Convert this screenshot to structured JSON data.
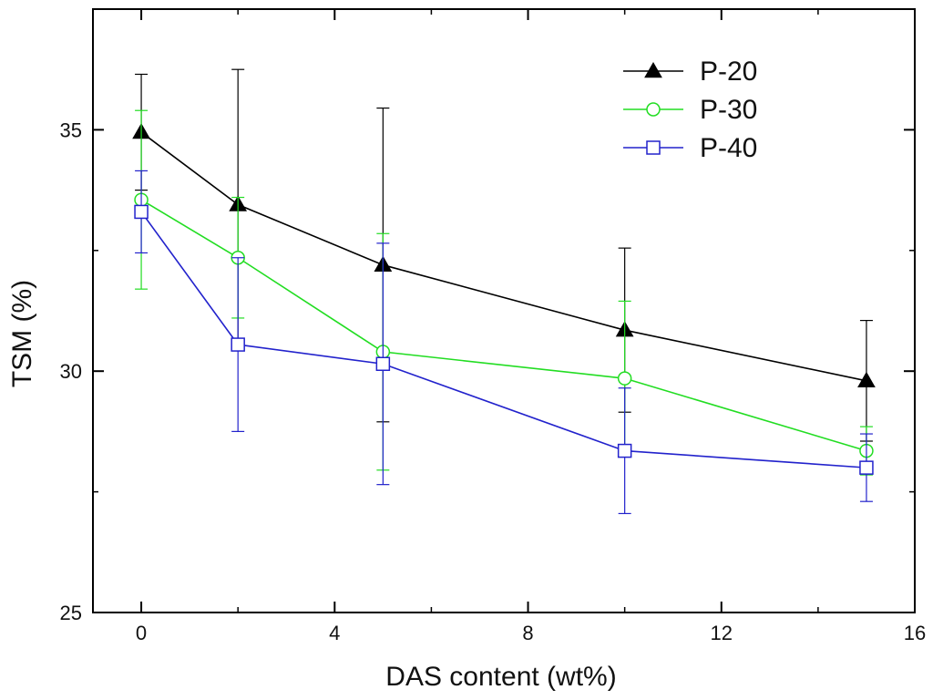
{
  "chart_data": {
    "type": "line",
    "title": "",
    "xlabel": "DAS content (wt%)",
    "ylabel": "TSM (%)",
    "xlim": [
      -1,
      16
    ],
    "ylim": [
      25,
      37.5
    ],
    "x_ticks": [
      0,
      4,
      8,
      12,
      16
    ],
    "y_ticks": [
      25,
      30,
      35
    ],
    "x_tick_labels": [
      "0",
      "4",
      "8",
      "12",
      "16"
    ],
    "y_tick_labels": [
      "25",
      "30",
      "35"
    ],
    "grid": false,
    "legend_position": "top-right",
    "x": [
      0,
      2,
      5,
      10,
      15
    ],
    "series": [
      {
        "name": "P-20",
        "color": "#000000",
        "marker": "filled-triangle",
        "values": [
          34.95,
          33.45,
          32.2,
          30.85,
          29.8
        ],
        "errors": [
          1.2,
          2.8,
          3.25,
          1.7,
          1.25
        ]
      },
      {
        "name": "P-30",
        "color": "#22dd22",
        "marker": "open-circle",
        "values": [
          33.55,
          32.35,
          30.4,
          29.85,
          28.35
        ],
        "errors": [
          1.85,
          1.25,
          2.45,
          1.6,
          0.5
        ]
      },
      {
        "name": "P-40",
        "color": "#2222cc",
        "marker": "open-square",
        "values": [
          33.3,
          30.55,
          30.15,
          28.35,
          28.0
        ],
        "errors": [
          0.85,
          1.8,
          2.5,
          1.3,
          0.7
        ]
      }
    ]
  }
}
